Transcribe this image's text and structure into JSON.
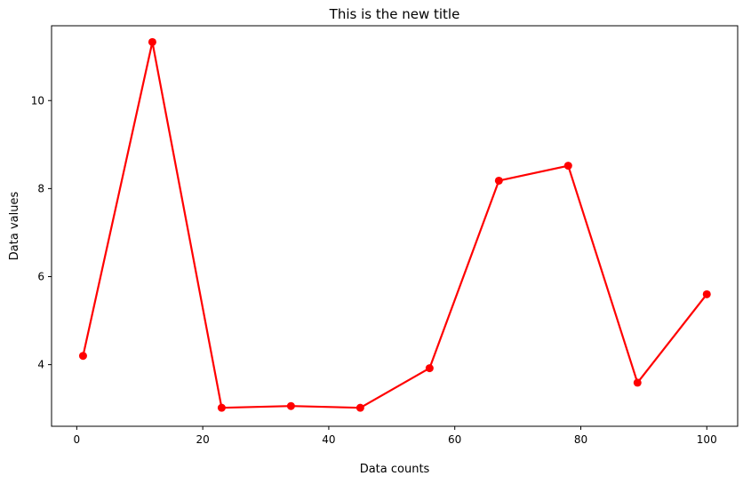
{
  "chart_data": {
    "type": "line",
    "title": "This is the new title",
    "xlabel": "Data counts",
    "ylabel": "Data values",
    "xlim": [
      -4.0,
      104.9
    ],
    "ylim": [
      2.6,
      11.7
    ],
    "xticks": [
      0,
      20,
      40,
      60,
      80,
      100
    ],
    "yticks": [
      4,
      6,
      8,
      10
    ],
    "grid": false,
    "series": [
      {
        "color": "#ff0000",
        "marker": "circle",
        "x": [
          1,
          12,
          23,
          34,
          45,
          56,
          67,
          78,
          89,
          100
        ],
        "y": [
          4.2,
          11.33,
          3.02,
          3.06,
          3.02,
          3.92,
          8.18,
          8.52,
          3.59,
          5.6
        ]
      }
    ]
  }
}
